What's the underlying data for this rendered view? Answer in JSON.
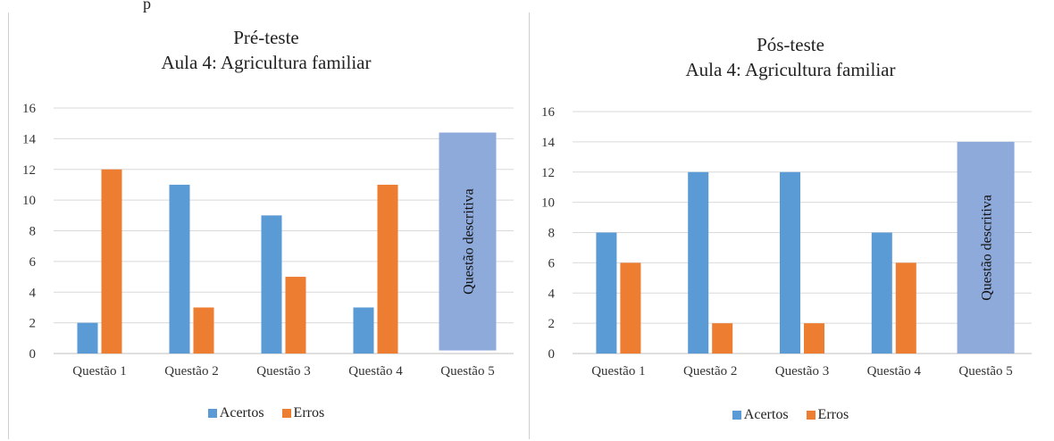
{
  "header_fragment": "p",
  "colors": {
    "acertos": "#5B9BD5",
    "erros": "#ED7D31",
    "descriptive_box": "#8EAADB",
    "grid": "#D9D9D9"
  },
  "chart_data": [
    {
      "type": "bar",
      "title": "Pré-teste",
      "subtitle": "Aula 4: Agricultura familiar",
      "categories": [
        "Questão 1",
        "Questão 2",
        "Questão 3",
        "Questão 4",
        "Questão 5"
      ],
      "series": [
        {
          "name": "Acertos",
          "values": [
            2,
            11,
            9,
            3,
            0
          ]
        },
        {
          "name": "Erros",
          "values": [
            12,
            3,
            5,
            11,
            0
          ]
        }
      ],
      "yticks": [
        "0",
        "2",
        "4",
        "6",
        "8",
        "10",
        "12",
        "14",
        "16"
      ],
      "ylim": [
        0,
        16
      ],
      "grid": true,
      "legend": "bottom",
      "annotation": {
        "category": "Questão 5",
        "text": "Questão descritiva",
        "range": [
          0.2,
          14.4
        ]
      }
    },
    {
      "type": "bar",
      "title": "Pós-teste",
      "subtitle": "Aula 4: Agricultura familiar",
      "categories": [
        "Questão 1",
        "Questão 2",
        "Questão 3",
        "Questão 4",
        "Questão 5"
      ],
      "series": [
        {
          "name": "Acertos",
          "values": [
            8,
            12,
            12,
            8,
            0
          ]
        },
        {
          "name": "Erros",
          "values": [
            6,
            2,
            2,
            6,
            0
          ]
        }
      ],
      "yticks": [
        "0",
        "2",
        "4",
        "6",
        "8",
        "10",
        "12",
        "14",
        "16"
      ],
      "ylim": [
        0,
        16
      ],
      "grid": true,
      "legend": "bottom",
      "annotation": {
        "category": "Questão 5",
        "text": "Questão descritiva",
        "range": [
          0,
          14
        ]
      }
    }
  ]
}
